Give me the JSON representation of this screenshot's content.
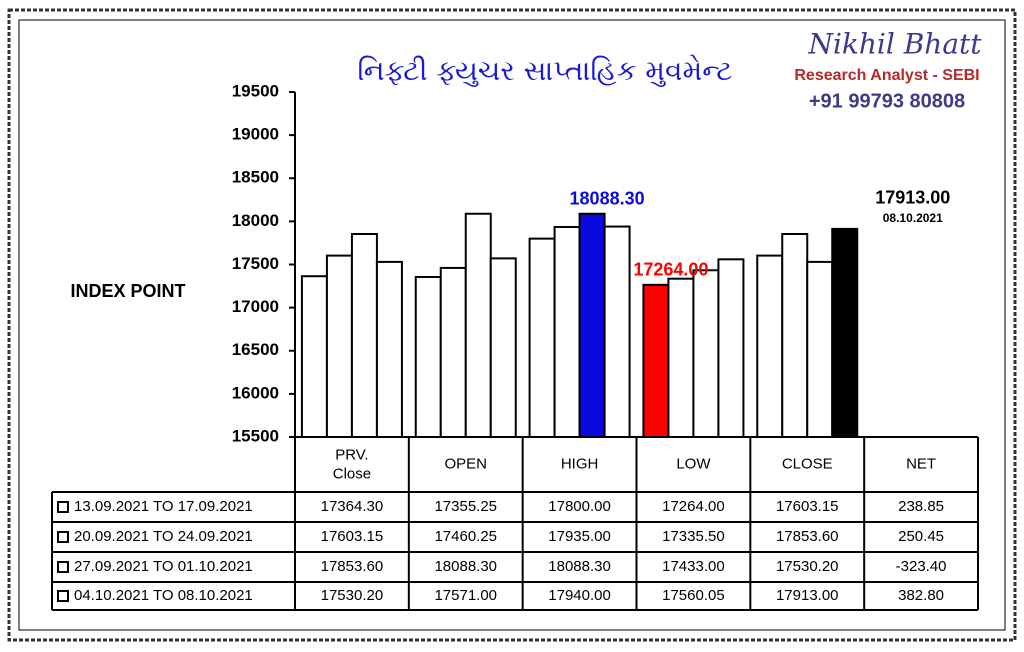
{
  "chart_data": {
    "type": "bar",
    "title": "નિફ્ટી ફ્યુચર સાપ્તાહિક મુવમેન્ટ",
    "brand": {
      "name": "Nikhil Bhatt",
      "role": "Research Analyst - SEBI",
      "phone": "+91 99793 80808"
    },
    "y_label": "INDEX POINT",
    "categories": [
      "PRV. Close",
      "OPEN",
      "HIGH",
      "LOW",
      "CLOSE",
      "NET"
    ],
    "series": [
      {
        "name": "13.09.2021 TO 17.09.2021",
        "color": "#ffffff",
        "values": [
          17364.3,
          17355.25,
          17800,
          17264,
          17603.15,
          238.85
        ],
        "value_labels": [
          "17364.30",
          "17355.25",
          "17800.00",
          "17264.00",
          "17603.15",
          "238.85"
        ]
      },
      {
        "name": "20.09.2021 TO 24.09.2021",
        "color": "#ffffff",
        "values": [
          17603.15,
          17460.25,
          17935,
          17335.5,
          17853.6,
          250.45
        ],
        "value_labels": [
          "17603.15",
          "17460.25",
          "17935.00",
          "17335.50",
          "17853.60",
          "250.45"
        ]
      },
      {
        "name": "27.09.2021 TO 01.10.2021",
        "color": "#ffffff",
        "values": [
          17853.6,
          18088.3,
          18088.3,
          17433,
          17530.2,
          -323.4
        ],
        "value_labels": [
          "17853.60",
          "18088.30",
          "18088.30",
          "17433.00",
          "17530.20",
          "-323.40"
        ]
      },
      {
        "name": "04.10.2021 TO 08.10.2021",
        "color": "#ffffff",
        "values": [
          17530.2,
          17571,
          17940,
          17560.05,
          17913,
          382.8
        ],
        "value_labels": [
          "17530.20",
          "17571.00",
          "17940.00",
          "17560.05",
          "17913.00",
          "382.80"
        ]
      }
    ],
    "highlights": [
      {
        "series": 2,
        "category": 2,
        "color": "#0a0ae0",
        "text": "18088.30"
      },
      {
        "series": 0,
        "category": 3,
        "color": "#ff0000",
        "text": "17264.00"
      },
      {
        "series": 3,
        "category": 4,
        "color": "#000000",
        "text": "17913.00",
        "note": "08.10.2021"
      }
    ],
    "ylim": [
      15500,
      19500
    ],
    "yticks": [
      15500,
      16000,
      16500,
      17000,
      17500,
      18000,
      18500,
      19000,
      19500
    ]
  }
}
